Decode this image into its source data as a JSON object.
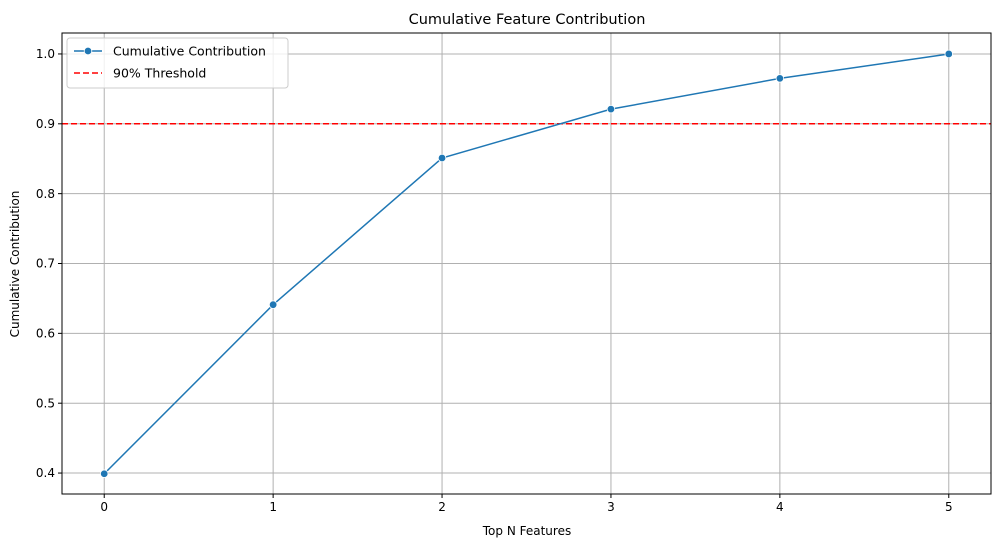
{
  "chart_data": {
    "type": "line",
    "title": "Cumulative Feature Contribution",
    "xlabel": "Top N Features",
    "ylabel": "Cumulative Contribution",
    "x": [
      0,
      1,
      2,
      3,
      4,
      5
    ],
    "xticks": [
      "0",
      "1",
      "2",
      "3",
      "4",
      "5"
    ],
    "yticks": [
      "0.4",
      "0.5",
      "0.6",
      "0.7",
      "0.8",
      "0.9",
      "1.0"
    ],
    "xlim": [
      -0.25,
      5.25
    ],
    "ylim": [
      0.37,
      1.03
    ],
    "grid": true,
    "legend_position": "top-left",
    "series": [
      {
        "name": "Cumulative Contribution",
        "values": [
          0.399,
          0.641,
          0.851,
          0.921,
          0.965,
          1.0
        ],
        "color": "#1f77b4",
        "marker": "circle"
      }
    ],
    "threshold": {
      "name": "90% Threshold",
      "value": 0.9,
      "color": "#ff0000",
      "style": "dashed"
    }
  }
}
